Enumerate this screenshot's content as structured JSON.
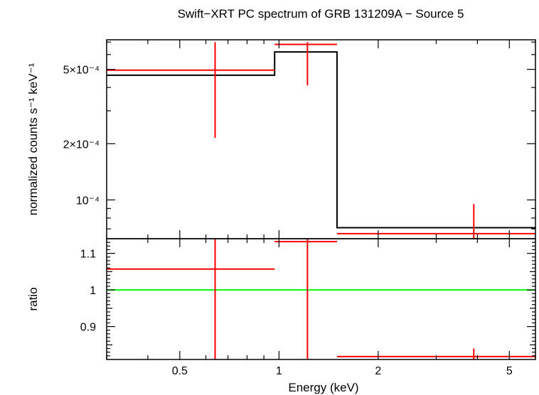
{
  "chart_data": [
    {
      "type": "line",
      "panel": "spectrum",
      "title": "Swift−XRT PC spectrum of GRB 131209A − Source 5",
      "xlabel": "Energy (keV)",
      "ylabel": "normalized counts s⁻¹ keV⁻¹",
      "x_scale": "log",
      "y_scale": "log",
      "xlim": [
        0.3,
        6.0
      ],
      "ylim": [
        6.2e-05,
        0.00072
      ],
      "y_tick_labels": [
        {
          "value": 0.0005,
          "label": "5×10⁻⁴"
        },
        {
          "value": 0.0002,
          "label": "2×10⁻⁴"
        },
        {
          "value": 0.0001,
          "label": "10⁻⁴"
        }
      ],
      "series": [
        {
          "color": "#ff0000",
          "style": "crosses",
          "points": [
            {
              "xlo": 0.3,
              "xhi": 0.97,
              "x": 0.64,
              "y": 0.000495,
              "ylo": 0.000215,
              "yhi": 0.0007
            },
            {
              "xlo": 0.97,
              "xhi": 1.5,
              "x": 1.22,
              "y": 0.00068,
              "ylo": 0.00041,
              "yhi": 0.0007
            },
            {
              "xlo": 1.5,
              "xhi": 6.0,
              "x": 3.9,
              "y": 6.6e-05,
              "ylo": 6.2e-05,
              "yhi": 9.5e-05
            }
          ]
        },
        {
          "color": "#000000",
          "style": "step",
          "bins": [
            {
              "xlo": 0.3,
              "xhi": 0.97,
              "y": 0.000465
            },
            {
              "xlo": 0.97,
              "xhi": 1.5,
              "y": 0.00062
            },
            {
              "xlo": 1.5,
              "xhi": 6.0,
              "y": 7.1e-05
            }
          ]
        }
      ]
    },
    {
      "type": "line",
      "panel": "ratio",
      "xlabel": "Energy (keV)",
      "ylabel": "ratio",
      "x_scale": "log",
      "y_scale": "linear",
      "xlim": [
        0.3,
        6.0
      ],
      "ylim": [
        0.81,
        1.14
      ],
      "y_ticks": [
        0.9,
        1.0,
        1.1
      ],
      "y_tick_labels": [
        "0.9",
        "1",
        "1.1"
      ],
      "x_ticks": [
        0.5,
        1,
        2,
        5
      ],
      "x_tick_labels": [
        "0.5",
        "1",
        "2",
        "5"
      ],
      "reference_line": {
        "y": 1.0,
        "color": "#00ff00"
      },
      "series": [
        {
          "color": "#ff0000",
          "style": "crosses",
          "points": [
            {
              "xlo": 0.3,
              "xhi": 0.97,
              "x": 0.64,
              "y": 1.057,
              "ylo": 0.81,
              "yhi": 1.14
            },
            {
              "xlo": 0.97,
              "xhi": 1.5,
              "x": 1.22,
              "y": 1.132,
              "ylo": 0.81,
              "yhi": 1.14
            },
            {
              "xlo": 1.5,
              "xhi": 6.0,
              "x": 3.9,
              "y": 0.818,
              "ylo": 0.81,
              "yhi": 0.84
            }
          ]
        }
      ]
    }
  ]
}
